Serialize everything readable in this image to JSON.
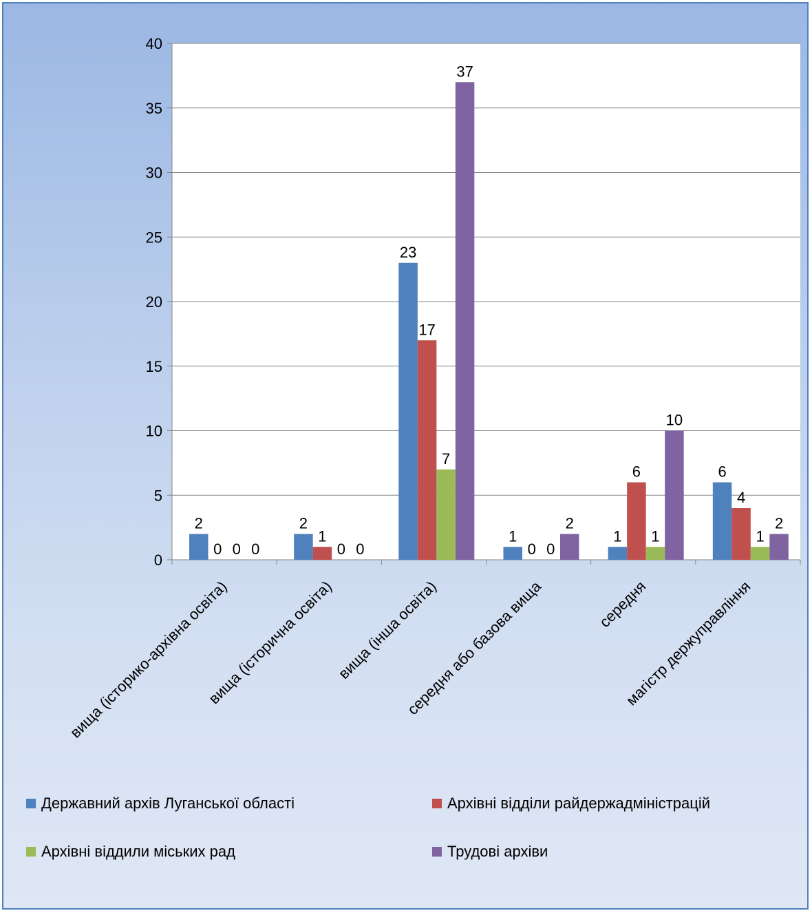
{
  "chart_data": {
    "type": "bar",
    "categories": [
      "вища (історико-архівна освіта)",
      "вища (історична освіта)",
      "вища (інша освіта)",
      "середня або базова вища",
      "середня",
      "магістр держуправління"
    ],
    "series": [
      {
        "name": "Державний архів Луганської області",
        "color": "#4f81bd",
        "values": [
          2,
          2,
          23,
          1,
          1,
          6
        ]
      },
      {
        "name": "Архівні відділи райдержадміністрацій",
        "color": "#c0504d",
        "values": [
          0,
          1,
          17,
          0,
          6,
          4
        ]
      },
      {
        "name": "Архівні віддили міських рад",
        "color": "#9bbb59",
        "values": [
          0,
          0,
          7,
          0,
          1,
          1
        ]
      },
      {
        "name": "Трудові архіви",
        "color": "#8064a2",
        "values": [
          0,
          0,
          37,
          2,
          10,
          2
        ]
      }
    ],
    "ylim": [
      0,
      40
    ],
    "yticks": [
      "0",
      "5",
      "10",
      "15",
      "20",
      "25",
      "30",
      "35",
      "40"
    ],
    "grid": true,
    "data_labels": true,
    "legend_position": "bottom"
  }
}
